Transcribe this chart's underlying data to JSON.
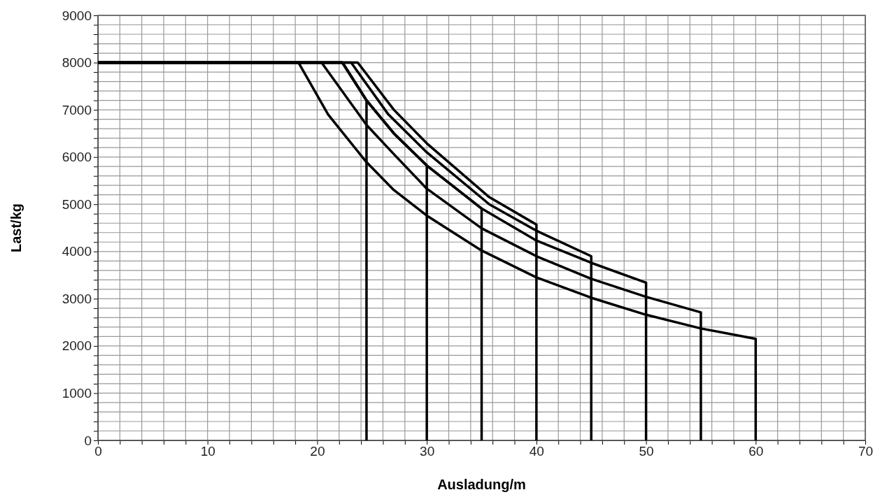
{
  "chart_data": {
    "type": "line",
    "xlabel": "Ausladung/m",
    "ylabel": "Last/kg",
    "xlim": [
      0,
      70
    ],
    "ylim": [
      0,
      9000
    ],
    "xticks": [
      0,
      {
        "value": 2,
        "label": null
      },
      {
        "value": 4,
        "label": null
      },
      {
        "value": 6,
        "label": null
      },
      {
        "value": 8,
        "label": null
      },
      10,
      {
        "value": 12,
        "label": null
      },
      {
        "value": 14,
        "label": null
      },
      {
        "value": 16,
        "label": null
      },
      {
        "value": 18,
        "label": null
      },
      20,
      {
        "value": 22,
        "label": null
      },
      {
        "value": 24,
        "label": null
      },
      {
        "value": 26,
        "label": null
      },
      {
        "value": 28,
        "label": null
      },
      30,
      {
        "value": 32,
        "label": null
      },
      {
        "value": 34,
        "label": null
      },
      {
        "value": 36,
        "label": null
      },
      {
        "value": 38,
        "label": null
      },
      40,
      {
        "value": 42,
        "label": null
      },
      {
        "value": 44,
        "label": null
      },
      {
        "value": 46,
        "label": null
      },
      {
        "value": 48,
        "label": null
      },
      50,
      {
        "value": 52,
        "label": null
      },
      {
        "value": 54,
        "label": null
      },
      {
        "value": 56,
        "label": null
      },
      {
        "value": 58,
        "label": null
      },
      60,
      {
        "value": 62,
        "label": null
      },
      {
        "value": 64,
        "label": null
      },
      {
        "value": 66,
        "label": null
      },
      {
        "value": 68,
        "label": null
      },
      70
    ],
    "yticks": [
      0,
      {
        "value": 200,
        "label": null
      },
      {
        "value": 400,
        "label": null
      },
      {
        "value": 600,
        "label": null
      },
      {
        "value": 800,
        "label": null
      },
      1000,
      {
        "value": 1200,
        "label": null
      },
      {
        "value": 1400,
        "label": null
      },
      {
        "value": 1600,
        "label": null
      },
      {
        "value": 1800,
        "label": null
      },
      2000,
      {
        "value": 2200,
        "label": null
      },
      {
        "value": 2400,
        "label": null
      },
      {
        "value": 2600,
        "label": null
      },
      {
        "value": 2800,
        "label": null
      },
      3000,
      {
        "value": 3200,
        "label": null
      },
      {
        "value": 3400,
        "label": null
      },
      {
        "value": 3600,
        "label": null
      },
      {
        "value": 3800,
        "label": null
      },
      4000,
      {
        "value": 4200,
        "label": null
      },
      {
        "value": 4400,
        "label": null
      },
      {
        "value": 4600,
        "label": null
      },
      {
        "value": 4800,
        "label": null
      },
      5000,
      {
        "value": 5200,
        "label": null
      },
      {
        "value": 5400,
        "label": null
      },
      {
        "value": 5600,
        "label": null
      },
      {
        "value": 5800,
        "label": null
      },
      6000,
      {
        "value": 6200,
        "label": null
      },
      {
        "value": 6400,
        "label": null
      },
      {
        "value": 6600,
        "label": null
      },
      {
        "value": 6800,
        "label": null
      },
      7000,
      {
        "value": 7200,
        "label": null
      },
      {
        "value": 7400,
        "label": null
      },
      {
        "value": 7600,
        "label": null
      },
      {
        "value": 7800,
        "label": null
      },
      8000,
      {
        "value": 8200,
        "label": null
      },
      {
        "value": 8400,
        "label": null
      },
      {
        "value": 8600,
        "label": null
      },
      {
        "value": 8800,
        "label": null
      },
      9000
    ],
    "grid": true,
    "marker": "none",
    "line_style": "solid",
    "series": [
      {
        "color": "#000000",
        "x": [
          0,
          18.3,
          21,
          24.5,
          27,
          30,
          35,
          40,
          45,
          50,
          55,
          60,
          60
        ],
        "values": [
          8000,
          8000,
          6900,
          5890,
          5300,
          4760,
          4020,
          3450,
          3020,
          2660,
          2370,
          2150,
          0
        ]
      },
      {
        "color": "#000000",
        "x": [
          0,
          20.4,
          24.5,
          27,
          30,
          35,
          40,
          45,
          50,
          55,
          55
        ],
        "values": [
          8000,
          8000,
          6680,
          6060,
          5330,
          4490,
          3900,
          3420,
          3040,
          2710,
          0
        ]
      },
      {
        "color": "#000000",
        "x": [
          0,
          22.3,
          24.5,
          27,
          30,
          35,
          40,
          45,
          50,
          50
        ],
        "values": [
          8000,
          8000,
          7200,
          6500,
          5820,
          4910,
          4230,
          3760,
          3340,
          0
        ]
      },
      {
        "color": "#000000",
        "x": [
          0,
          23.1,
          26.5,
          30,
          35.7,
          40,
          45,
          45
        ],
        "values": [
          8000,
          8000,
          6900,
          6100,
          5000,
          4440,
          3900,
          0
        ]
      },
      {
        "color": "#000000",
        "x": [
          0,
          23.7,
          27,
          30,
          35.7,
          40,
          40
        ],
        "values": [
          8000,
          8000,
          7000,
          6290,
          5150,
          4570,
          0
        ]
      },
      {
        "color": "#000000",
        "x": [
          0,
          22.3,
          24.5,
          27,
          30,
          35,
          35
        ],
        "values": [
          8000,
          8000,
          7200,
          6500,
          5820,
          4910,
          0
        ]
      },
      {
        "color": "#000000",
        "x": [
          0,
          22.3,
          24.5,
          27,
          30,
          30
        ],
        "values": [
          8000,
          8000,
          7200,
          6500,
          5820,
          0
        ]
      },
      {
        "color": "#000000",
        "x": [
          0,
          22.3,
          24.5,
          24.5
        ],
        "values": [
          8000,
          8000,
          7200,
          0
        ]
      }
    ]
  }
}
